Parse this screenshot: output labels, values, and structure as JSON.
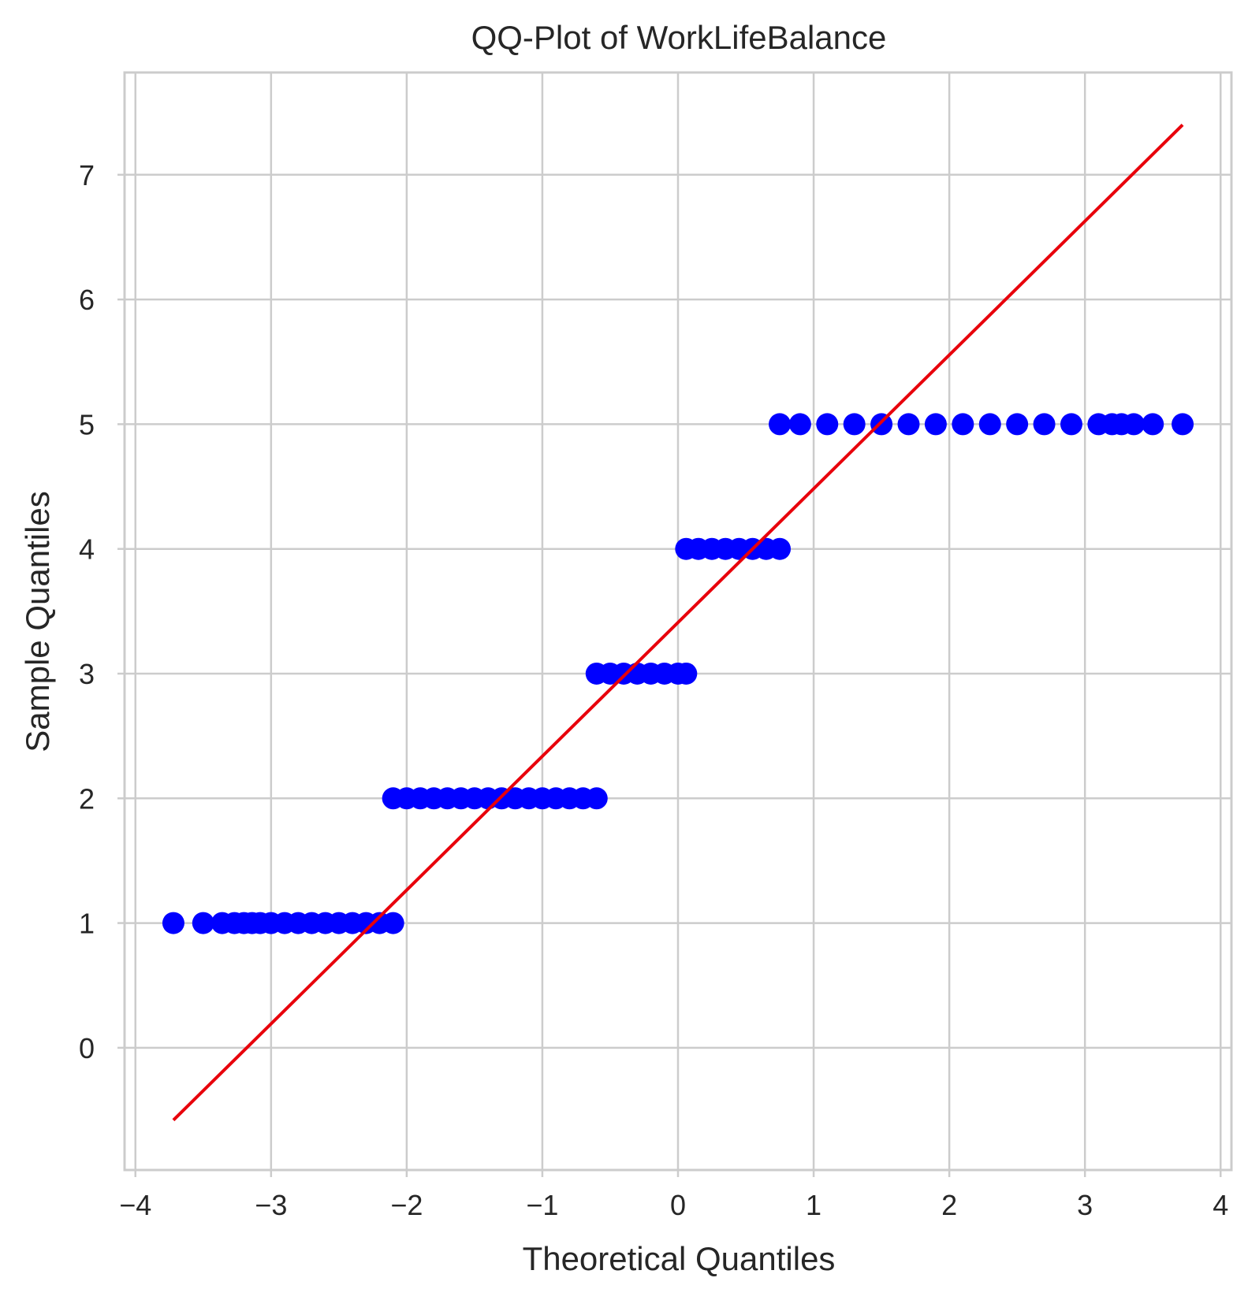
{
  "chart_data": {
    "type": "scatter",
    "title": "QQ-Plot of WorkLifeBalance",
    "xlabel": "Theoretical Quantiles",
    "ylabel": "Sample Quantiles",
    "xlim": [
      -4.08,
      4.08
    ],
    "ylim": [
      -0.98,
      7.82
    ],
    "grid": true,
    "x_ticks": [
      -4,
      -3,
      -2,
      -1,
      0,
      1,
      2,
      3,
      4
    ],
    "x_tick_labels": [
      "−4",
      "−3",
      "−2",
      "−1",
      "0",
      "1",
      "2",
      "3",
      "4"
    ],
    "y_ticks": [
      0,
      1,
      2,
      3,
      4,
      5,
      6,
      7
    ],
    "y_tick_labels": [
      "0",
      "1",
      "2",
      "3",
      "4",
      "5",
      "6",
      "7"
    ],
    "colors": {
      "points": "#0000ff",
      "line": "#e8000b",
      "grid": "#cccccc",
      "frame": "#cccccc"
    },
    "series": [
      {
        "kind": "points",
        "points": [
          [
            -3.72,
            1
          ],
          [
            -3.5,
            1
          ],
          [
            -3.36,
            1
          ],
          [
            -3.27,
            1
          ],
          [
            -3.2,
            1
          ],
          [
            -3.14,
            1
          ],
          [
            -3.08,
            1
          ],
          [
            -3.0,
            1
          ],
          [
            -2.9,
            1
          ],
          [
            -2.8,
            1
          ],
          [
            -2.7,
            1
          ],
          [
            -2.6,
            1
          ],
          [
            -2.5,
            1
          ],
          [
            -2.4,
            1
          ],
          [
            -2.3,
            1
          ],
          [
            -2.2,
            1
          ],
          [
            -2.1,
            1
          ],
          [
            -2.1,
            2
          ],
          [
            -2.0,
            2
          ],
          [
            -1.9,
            2
          ],
          [
            -1.8,
            2
          ],
          [
            -1.7,
            2
          ],
          [
            -1.6,
            2
          ],
          [
            -1.5,
            2
          ],
          [
            -1.4,
            2
          ],
          [
            -1.3,
            2
          ],
          [
            -1.2,
            2
          ],
          [
            -1.1,
            2
          ],
          [
            -1.0,
            2
          ],
          [
            -0.9,
            2
          ],
          [
            -0.8,
            2
          ],
          [
            -0.7,
            2
          ],
          [
            -0.6,
            2
          ],
          [
            -0.6,
            3
          ],
          [
            -0.5,
            3
          ],
          [
            -0.4,
            3
          ],
          [
            -0.3,
            3
          ],
          [
            -0.2,
            3
          ],
          [
            -0.1,
            3
          ],
          [
            0.0,
            3
          ],
          [
            0.06,
            3
          ],
          [
            0.06,
            4
          ],
          [
            0.15,
            4
          ],
          [
            0.25,
            4
          ],
          [
            0.35,
            4
          ],
          [
            0.45,
            4
          ],
          [
            0.55,
            4
          ],
          [
            0.65,
            4
          ],
          [
            0.75,
            4
          ],
          [
            0.75,
            5
          ],
          [
            0.9,
            5
          ],
          [
            1.1,
            5
          ],
          [
            1.3,
            5
          ],
          [
            1.5,
            5
          ],
          [
            1.7,
            5
          ],
          [
            1.9,
            5
          ],
          [
            2.1,
            5
          ],
          [
            2.3,
            5
          ],
          [
            2.5,
            5
          ],
          [
            2.7,
            5
          ],
          [
            2.9,
            5
          ],
          [
            3.1,
            5
          ],
          [
            3.2,
            5
          ],
          [
            3.27,
            5
          ],
          [
            3.36,
            5
          ],
          [
            3.5,
            5
          ],
          [
            3.72,
            5
          ]
        ]
      },
      {
        "kind": "line",
        "points": [
          [
            -3.72,
            -0.58
          ],
          [
            3.72,
            7.4
          ]
        ]
      }
    ]
  }
}
